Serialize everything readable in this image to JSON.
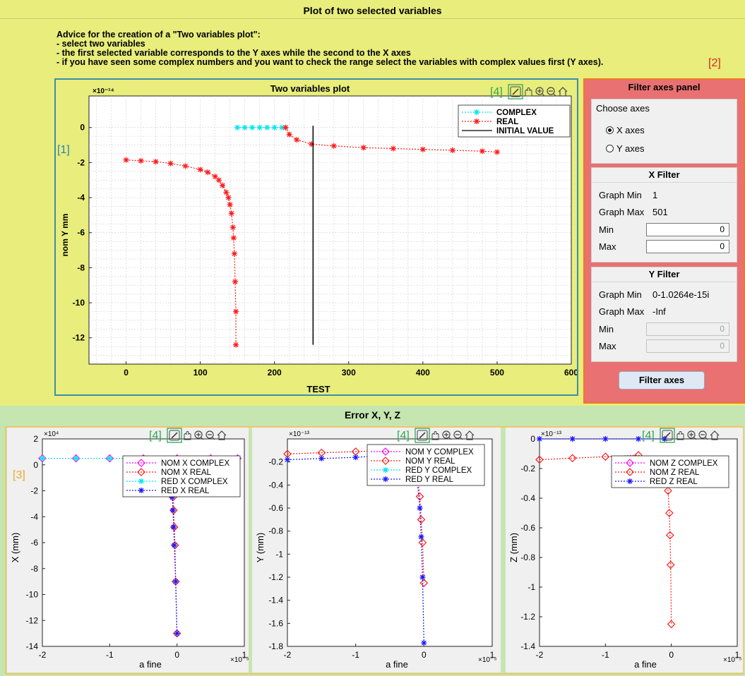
{
  "top": {
    "title": "Plot of two selected variables",
    "advice": [
      "Advice for the creation of a \"Two variables plot\":",
      "- select two variables",
      "- the first selected variable corresponds to the Y axes while the second to the X axes",
      "- if you have seen some complex numbers and you want to check the range select the variables with complex values first (Y axes)."
    ]
  },
  "callouts": {
    "c1": "[1]",
    "c2": "[2]",
    "c3": "[3]",
    "c4": "[4]"
  },
  "toolbar_icons": [
    "brush-icon",
    "pan-hand-icon",
    "zoom-in-icon",
    "zoom-out-icon",
    "home-icon"
  ],
  "colors": {
    "top_bg": "#e8ed7c",
    "bottom_bg": "#c5e6b0",
    "filter_bg": "#e97171",
    "complex": "#00e5ee",
    "real": "#ff1a1a",
    "blue": "#1a1aff",
    "magenta": "#ff00ff"
  },
  "filter": {
    "title": "Filter axes panel",
    "choose": {
      "title": "Choose axes",
      "options": [
        "X axes",
        "Y axes"
      ],
      "selected": "X axes"
    },
    "x": {
      "title": "X Filter",
      "graph_min_label": "Graph Min",
      "graph_min": "1",
      "graph_max_label": "Graph Max",
      "graph_max": "501",
      "min_label": "Min",
      "min": "0",
      "max_label": "Max",
      "max": "0"
    },
    "y": {
      "title": "Y Filter",
      "graph_min_label": "Graph Min",
      "graph_min": "0-1.0264e-15i",
      "graph_max_label": "Graph Max",
      "graph_max": "-Inf",
      "min_label": "Min",
      "min": "0",
      "max_label": "Max",
      "max": "0"
    },
    "button": "Filter axes"
  },
  "bottom": {
    "title": "Error X, Y, Z"
  },
  "chart_data": [
    {
      "type": "line",
      "title": "Two variables plot",
      "xlabel": "TEST",
      "ylabel": "nom Y mm",
      "y_exponent": "×10⁻¹⁴",
      "xlim": [
        -50,
        600
      ],
      "ylim": [
        -13.5,
        1.8
      ],
      "xticks": [
        0,
        100,
        200,
        300,
        400,
        500,
        600
      ],
      "yticks": [
        0,
        -2,
        -4,
        -6,
        -8,
        -10,
        -12
      ],
      "grid": true,
      "legend_position": "top-right",
      "series": [
        {
          "name": "COMPLEX",
          "color": "#00e5ee",
          "marker": "*",
          "x": [
            150,
            160,
            170,
            180,
            190,
            200,
            210,
            215
          ],
          "y": [
            0,
            0,
            0,
            0,
            0,
            0,
            0,
            0
          ]
        },
        {
          "name": "REAL",
          "color": "#ff1a1a",
          "marker": "*",
          "x": [
            0,
            20,
            40,
            60,
            80,
            100,
            110,
            120,
            125,
            130,
            135,
            138,
            140,
            142,
            144,
            145,
            146,
            147,
            148,
            148
          ],
          "y": [
            -1.85,
            -1.9,
            -1.95,
            -2.05,
            -2.2,
            -2.4,
            -2.55,
            -2.8,
            -3.0,
            -3.3,
            -3.7,
            -4.0,
            -4.4,
            -4.9,
            -5.7,
            -6.3,
            -7.2,
            -8.8,
            -10.5,
            -12.4
          ]
        },
        {
          "name": "REAL",
          "color": "#ff1a1a",
          "marker": "*",
          "x": [
            215,
            220,
            230,
            250,
            280,
            320,
            360,
            400,
            440,
            480,
            500
          ],
          "y": [
            0,
            -0.4,
            -0.7,
            -0.95,
            -1.05,
            -1.15,
            -1.2,
            -1.25,
            -1.3,
            -1.35,
            -1.4
          ]
        },
        {
          "name": "INITIAL VALUE",
          "color": "#000000",
          "marker": "",
          "x": [
            252,
            252
          ],
          "y": [
            0.1,
            -12.4
          ]
        }
      ]
    },
    {
      "type": "line",
      "xlabel": "a fine",
      "ylabel": "X (mm)",
      "y_exponent": "×10⁴",
      "x_exponent": "×10⁻⁵",
      "xlim": [
        -2,
        1
      ],
      "ylim": [
        -14,
        2
      ],
      "xticks": [
        -2,
        -1,
        0,
        1
      ],
      "yticks": [
        2,
        0,
        -2,
        -4,
        -6,
        -8,
        -10,
        -12,
        -14
      ],
      "series": [
        {
          "name": "NOM X COMPLEX",
          "color": "#ff00ff",
          "marker": "diamond",
          "x": [
            -2,
            -1.5,
            -1,
            -0.5,
            0,
            0.5,
            0.9
          ],
          "y": [
            0.5,
            0.5,
            0.5,
            0.5,
            0.5,
            0.5,
            0.5
          ]
        },
        {
          "name": "NOM X REAL",
          "color": "#ff1a1a",
          "marker": "diamond",
          "x": [
            -0.08,
            -0.07,
            -0.06,
            -0.05,
            -0.04,
            -0.03,
            -0.02,
            0
          ],
          "y": [
            -0.5,
            -1.5,
            -2.5,
            -3.5,
            -4.8,
            -6.2,
            -9,
            -13
          ]
        },
        {
          "name": "RED X COMPLEX",
          "color": "#00e5ee",
          "marker": "*",
          "x": [
            -2,
            -1.5,
            -1,
            -0.6,
            -0.1
          ],
          "y": [
            0.5,
            0.5,
            0.5,
            0.5,
            0.5
          ]
        },
        {
          "name": "RED X REAL",
          "color": "#1a1aff",
          "marker": "*",
          "x": [
            -0.09,
            -0.08,
            -0.07,
            -0.06,
            -0.05,
            -0.04,
            -0.02,
            0
          ],
          "y": [
            -0.5,
            -1.5,
            -2.5,
            -3.5,
            -4.8,
            -6.2,
            -9,
            -13
          ]
        }
      ]
    },
    {
      "type": "line",
      "xlabel": "a fine",
      "ylabel": "Y (mm)",
      "y_exponent": "×10⁻¹³",
      "x_exponent": "×10⁻⁵",
      "xlim": [
        -2,
        1
      ],
      "ylim": [
        -1.8,
        0
      ],
      "xticks": [
        -2,
        -1,
        0,
        1
      ],
      "yticks": [
        -0.2,
        -0.4,
        -0.6,
        -0.8,
        -1,
        -1.2,
        -1.4,
        -1.6,
        -1.8
      ],
      "series": [
        {
          "name": "NOM Y COMPLEX",
          "color": "#ff00ff",
          "marker": "diamond",
          "x": [],
          "y": []
        },
        {
          "name": "NOM Y REAL",
          "color": "#ff1a1a",
          "marker": "diamond",
          "x": [
            -2,
            -1.5,
            -1,
            -0.5,
            -0.2,
            -0.1,
            -0.06,
            -0.04,
            -0.02,
            0
          ],
          "y": [
            -0.13,
            -0.12,
            -0.11,
            -0.1,
            -0.12,
            -0.3,
            -0.5,
            -0.7,
            -0.9,
            -1.25
          ]
        },
        {
          "name": "RED Y COMPLEX",
          "color": "#00e5ee",
          "marker": "*",
          "x": [],
          "y": []
        },
        {
          "name": "RED Y REAL",
          "color": "#1a1aff",
          "marker": "*",
          "x": [
            -2,
            -1.5,
            -1,
            -0.5,
            -0.2,
            -0.1,
            -0.06,
            -0.04,
            -0.02,
            0
          ],
          "y": [
            -0.18,
            -0.17,
            -0.16,
            -0.14,
            -0.1,
            -0.35,
            -0.6,
            -0.85,
            -1.2,
            -1.77
          ]
        }
      ]
    },
    {
      "type": "line",
      "xlabel": "a fine",
      "ylabel": "Z (mm)",
      "y_exponent": "×10⁻¹³",
      "x_exponent": "×10⁻⁵",
      "xlim": [
        -2,
        1
      ],
      "ylim": [
        -1.4,
        0
      ],
      "xticks": [
        -2,
        -1,
        0,
        1
      ],
      "yticks": [
        0,
        -0.2,
        -0.4,
        -0.6,
        -0.8,
        -1,
        -1.2,
        -1.4
      ],
      "series": [
        {
          "name": "NOM Z COMPLEX",
          "color": "#ff00ff",
          "marker": "diamond",
          "x": [],
          "y": []
        },
        {
          "name": "NOM Z REAL",
          "color": "#ff1a1a",
          "marker": "diamond",
          "x": [
            -2,
            -1.5,
            -1,
            -0.5,
            -0.1,
            -0.05,
            -0.03,
            -0.02,
            -0.01,
            0
          ],
          "y": [
            -0.14,
            -0.13,
            -0.12,
            -0.11,
            -0.2,
            -0.35,
            -0.5,
            -0.65,
            -0.85,
            -1.25
          ]
        },
        {
          "name": "RED Z REAL",
          "color": "#1a1aff",
          "marker": "*",
          "x": [
            -2,
            -1.5,
            -1,
            -0.5,
            -0.1
          ],
          "y": [
            0,
            0,
            0,
            0,
            0
          ]
        }
      ]
    }
  ]
}
